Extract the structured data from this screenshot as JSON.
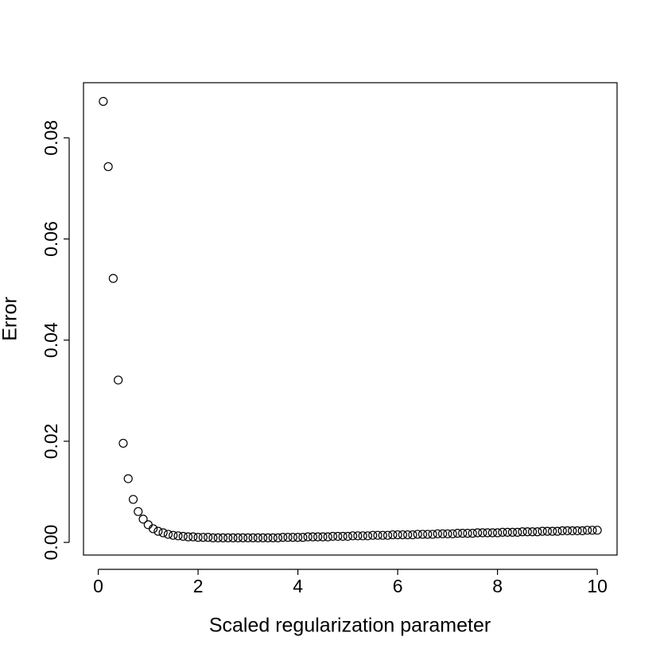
{
  "chart_data": {
    "type": "scatter",
    "xlabel": "Scaled regularization parameter",
    "ylabel": "Error",
    "color": "#000000",
    "x": [
      0.1,
      0.2,
      0.3,
      0.4,
      0.5,
      0.6,
      0.7,
      0.8,
      0.9,
      1.0,
      1.1,
      1.2,
      1.3,
      1.4,
      1.5,
      1.6,
      1.7,
      1.8,
      1.9,
      2.0,
      2.1,
      2.2,
      2.3,
      2.4,
      2.5,
      2.6,
      2.7,
      2.8,
      2.9,
      3.0,
      3.1,
      3.2,
      3.3,
      3.4,
      3.5,
      3.6,
      3.7,
      3.8,
      3.9,
      4.0,
      4.1,
      4.2,
      4.3,
      4.4,
      4.5,
      4.6,
      4.7,
      4.8,
      4.9,
      5.0,
      5.1,
      5.2,
      5.3,
      5.4,
      5.5,
      5.6,
      5.7,
      5.8,
      5.9,
      6.0,
      6.1,
      6.2,
      6.3,
      6.4,
      6.5,
      6.6,
      6.7,
      6.8,
      6.9,
      7.0,
      7.1,
      7.2,
      7.3,
      7.4,
      7.5,
      7.6,
      7.7,
      7.8,
      7.9,
      8.0,
      8.1,
      8.2,
      8.3,
      8.4,
      8.5,
      8.6,
      8.7,
      8.8,
      8.9,
      9.0,
      9.1,
      9.2,
      9.3,
      9.4,
      9.5,
      9.6,
      9.7,
      9.8,
      9.9,
      10.0
    ],
    "values": [
      0.0872,
      0.0743,
      0.0522,
      0.0321,
      0.0196,
      0.0126,
      0.0085,
      0.0061,
      0.0046,
      0.0035,
      0.0027,
      0.0022,
      0.0019,
      0.0016,
      0.0014,
      0.0013,
      0.0012,
      0.0011,
      0.0011,
      0.001,
      0.001,
      0.001,
      0.0009,
      0.0009,
      0.0009,
      0.0009,
      0.0009,
      0.0009,
      0.0009,
      0.0009,
      0.0009,
      0.0009,
      0.0009,
      0.0009,
      0.0009,
      0.0009,
      0.001,
      0.001,
      0.001,
      0.001,
      0.001,
      0.0011,
      0.0011,
      0.0011,
      0.0011,
      0.0011,
      0.0012,
      0.0012,
      0.0012,
      0.0012,
      0.0013,
      0.0013,
      0.0013,
      0.0013,
      0.0014,
      0.0014,
      0.0014,
      0.0014,
      0.0015,
      0.0015,
      0.0015,
      0.0015,
      0.0015,
      0.0016,
      0.0016,
      0.0016,
      0.0016,
      0.0017,
      0.0017,
      0.0017,
      0.0017,
      0.0018,
      0.0018,
      0.0018,
      0.0018,
      0.0019,
      0.0019,
      0.0019,
      0.0019,
      0.0019,
      0.002,
      0.002,
      0.002,
      0.002,
      0.0021,
      0.0021,
      0.0021,
      0.0021,
      0.0022,
      0.0022,
      0.0022,
      0.0022,
      0.0023,
      0.0023,
      0.0023,
      0.0023,
      0.0023,
      0.0024,
      0.0024,
      0.0024
    ],
    "xlim": [
      -0.296,
      10.396
    ],
    "ylim": [
      -0.0025,
      0.0909
    ],
    "xticks": [
      0,
      2,
      4,
      6,
      8,
      10
    ],
    "yticks": [
      {
        "value": 0,
        "label": "0.00"
      },
      {
        "value": 0.02,
        "label": "0.02"
      },
      {
        "value": 0.04,
        "label": "0.04"
      },
      {
        "value": 0.06,
        "label": "0.06"
      },
      {
        "value": 0.08,
        "label": "0.08"
      }
    ]
  }
}
